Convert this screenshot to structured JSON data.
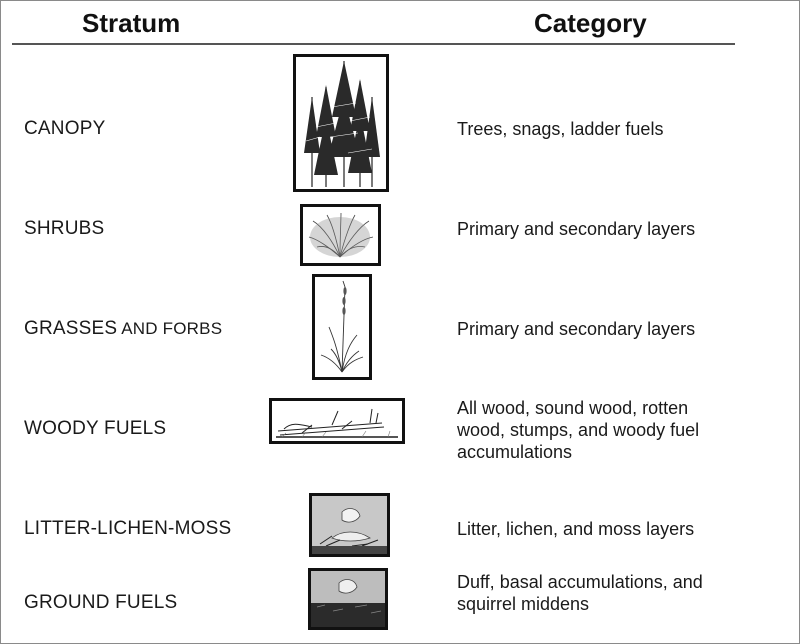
{
  "header": {
    "stratum": "Stratum",
    "category": "Category"
  },
  "rows": [
    {
      "stratum": "CANOPY",
      "category": "Trees, snags, ladder fuels",
      "icon": "trees-icon"
    },
    {
      "stratum": "SHRUBS",
      "category": "Primary and secondary layers",
      "icon": "shrub-icon"
    },
    {
      "stratum_a": "GRASSES",
      "stratum_b": " AND FORBS",
      "category": "Primary and secondary layers",
      "icon": "grass-icon"
    },
    {
      "stratum": "WOODY FUELS",
      "category_lines": [
        "All wood, sound wood, rotten",
        "wood, stumps, and woody fuel",
        "accumulations"
      ],
      "icon": "log-icon"
    },
    {
      "stratum": "LITTER-LICHEN-MOSS",
      "category": "Litter, lichen, and moss layers",
      "icon": "leaf-litter-icon"
    },
    {
      "stratum": "GROUND FUELS",
      "category_lines": [
        "Duff, basal accumulations, and",
        "squirrel middens"
      ],
      "icon": "duff-icon"
    }
  ]
}
